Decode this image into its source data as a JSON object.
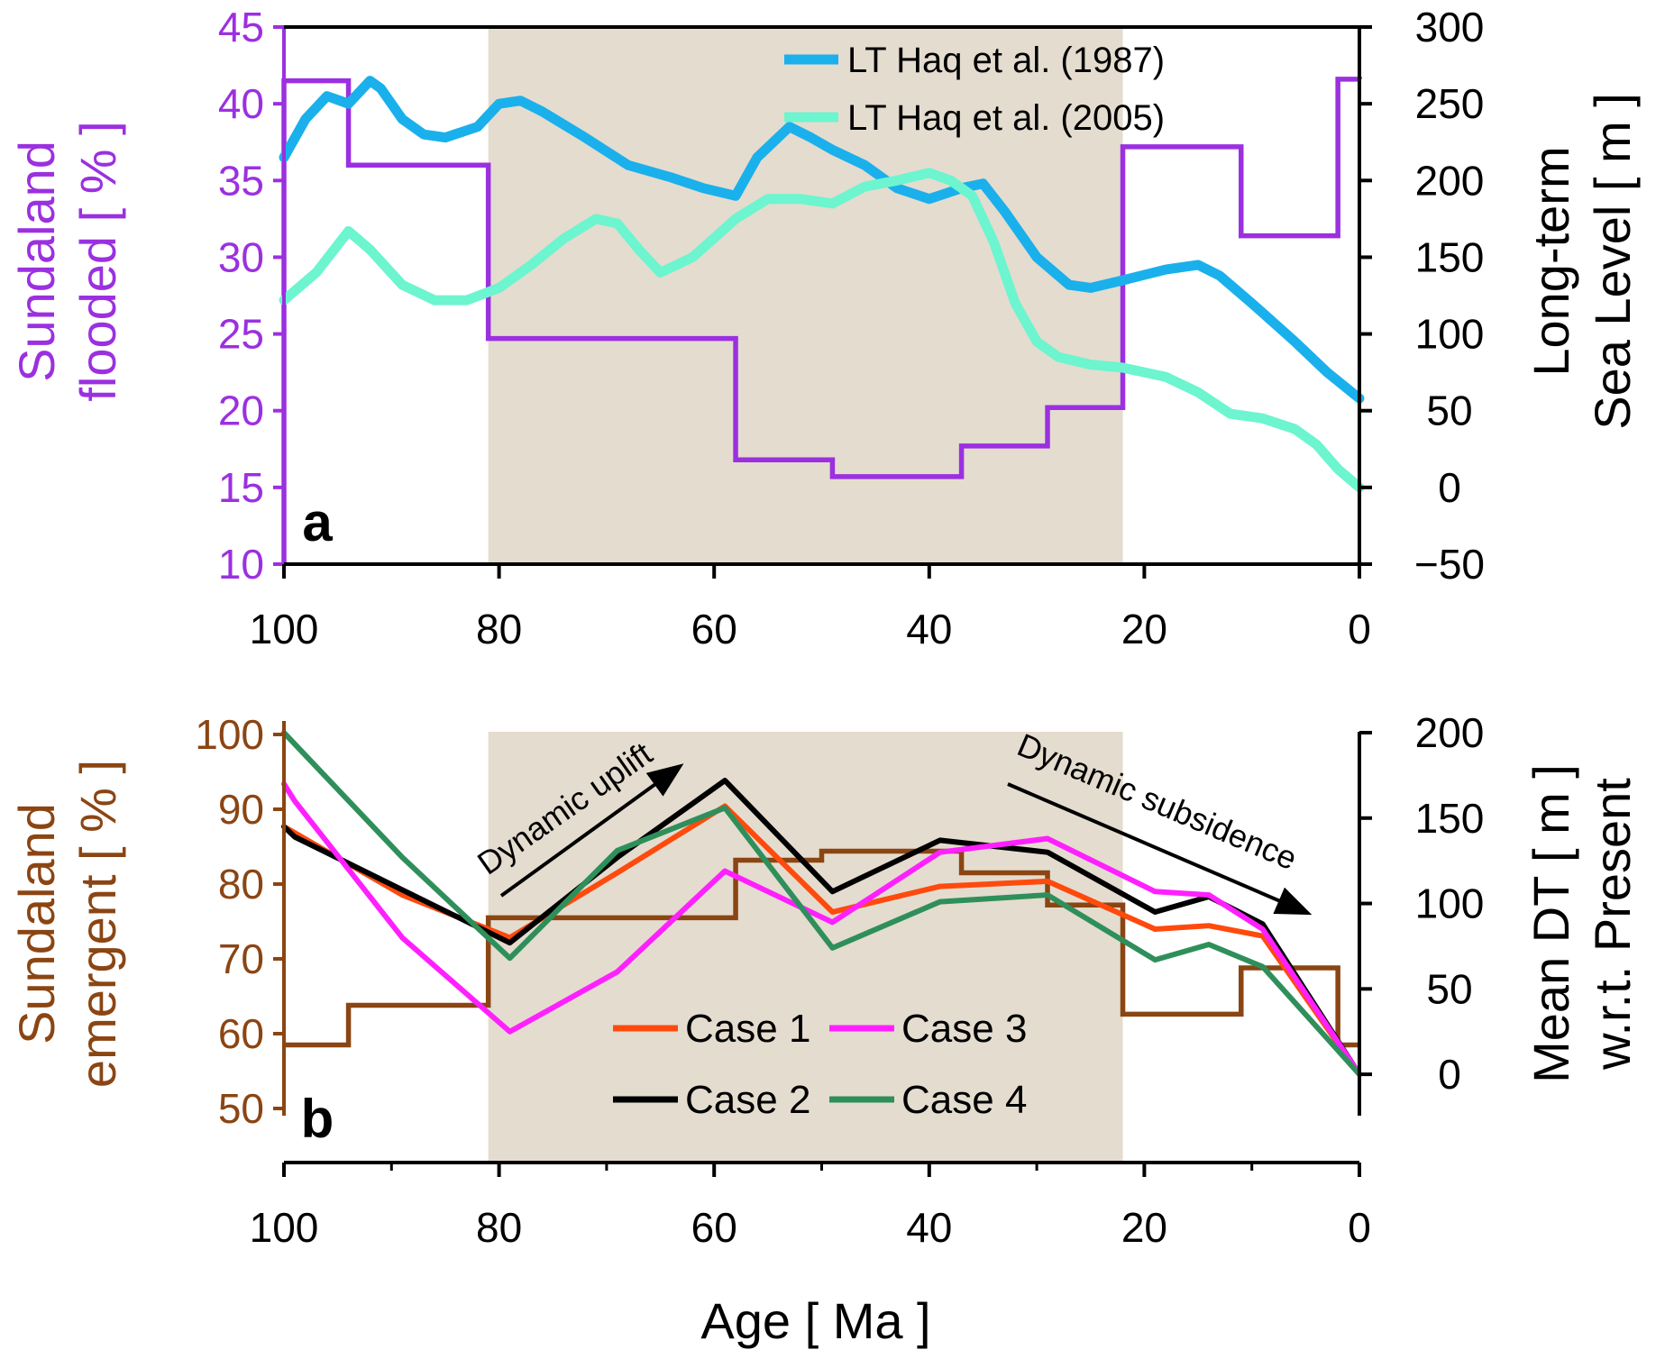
{
  "chart_data": [
    {
      "panel": "a",
      "type": "line",
      "xlabel": "",
      "x_ticks": [
        "100",
        "80",
        "60",
        "40",
        "20",
        "0"
      ],
      "xlim": [
        100,
        0
      ],
      "ylabel_left": [
        "Sundaland",
        "flooded [ % ]"
      ],
      "ylim_left": [
        10,
        45
      ],
      "y_ticks_left": [
        "10",
        "15",
        "20",
        "25",
        "30",
        "35",
        "40",
        "45"
      ],
      "ylabel_right": [
        "Long-term",
        "Sea Level [ m ]"
      ],
      "ylim_right": [
        -50,
        300
      ],
      "y_ticks_right": [
        "-50",
        "0",
        "50",
        "100",
        "150",
        "200",
        "250",
        "300"
      ],
      "shaded_interval_ma": [
        81,
        22
      ],
      "panel_letter": "a",
      "step_series": {
        "axis": "left",
        "color": "#9b30e0",
        "boundaries": [
          100,
          94,
          81,
          58,
          49,
          37,
          29,
          22,
          11,
          2,
          0
        ],
        "values": [
          41.5,
          36,
          24.7,
          16.8,
          15.7,
          17.7,
          20.2,
          37.2,
          31.4,
          41.6
        ]
      },
      "series": [
        {
          "name": "LT Haq et al. (1987)",
          "axis": "right",
          "color": "#1ab0ec",
          "x": [
            100,
            98,
            96,
            94,
            92,
            91,
            89,
            87,
            85,
            82,
            80,
            78,
            76,
            72,
            68,
            64,
            61,
            58,
            56,
            53,
            51,
            49,
            46,
            43,
            40,
            37,
            35,
            33,
            30,
            27,
            25,
            22,
            18,
            15,
            13,
            10,
            6,
            3,
            0
          ],
          "y": [
            215,
            240,
            255,
            250,
            265,
            260,
            240,
            230,
            228,
            235,
            250,
            252,
            245,
            228,
            210,
            202,
            195,
            190,
            215,
            235,
            228,
            220,
            210,
            195,
            188,
            195,
            198,
            180,
            150,
            132,
            130,
            135,
            142,
            145,
            138,
            120,
            95,
            75,
            58
          ]
        },
        {
          "name": "LT Haq et al. (2005)",
          "axis": "right",
          "color": "#6cf5cf",
          "x": [
            100,
            97,
            94,
            92,
            89,
            86,
            83,
            80,
            77,
            74,
            71,
            69,
            67,
            65,
            62,
            58,
            55,
            52,
            49,
            46,
            43,
            40,
            38,
            36,
            34,
            32,
            30,
            28,
            25,
            22,
            18,
            15,
            12,
            9,
            6,
            4,
            2,
            0
          ],
          "y": [
            122,
            140,
            167,
            155,
            132,
            122,
            122,
            130,
            145,
            162,
            175,
            172,
            155,
            140,
            150,
            175,
            188,
            188,
            185,
            196,
            200,
            205,
            200,
            190,
            160,
            120,
            95,
            85,
            80,
            78,
            72,
            62,
            48,
            45,
            38,
            28,
            12,
            0
          ]
        }
      ],
      "legend": [
        "LT Haq et al. (1987)",
        "LT Haq et al. (2005)"
      ]
    },
    {
      "panel": "b",
      "type": "line",
      "xlabel": "Age [ Ma ]",
      "x_ticks": [
        "100",
        "80",
        "60",
        "40",
        "20",
        "0"
      ],
      "xlim": [
        100,
        0
      ],
      "ylabel_left": [
        "Sundaland",
        "emergent [ % ]"
      ],
      "ylim_left": [
        50,
        100
      ],
      "y_ticks_left": [
        "50",
        "60",
        "70",
        "80",
        "90",
        "100"
      ],
      "ylabel_right": [
        "Mean DT [ m ]",
        "w.r.t. Present"
      ],
      "ylim_right": [
        -20,
        200
      ],
      "y_ticks_right": [
        "0",
        "50",
        "100",
        "150",
        "200"
      ],
      "shaded_interval_ma": [
        81,
        22
      ],
      "panel_letter": "b",
      "step_series": {
        "axis": "left",
        "color": "#8b4513",
        "boundaries": [
          100,
          94,
          81,
          58,
          50,
          39,
          37,
          29,
          22,
          11,
          2,
          0
        ],
        "values": [
          58.5,
          63.8,
          75.5,
          83.2,
          84.4,
          84.4,
          81.5,
          77.2,
          62.6,
          68.8,
          58.5
        ]
      },
      "series": [
        {
          "name": "Case 1",
          "axis": "right",
          "color": "#ff4a0d",
          "x": [
            100,
            89,
            79,
            69,
            59,
            49,
            39,
            29,
            19,
            14,
            9,
            0
          ],
          "y": [
            145,
            105,
            80,
            118,
            157,
            95,
            110,
            113,
            85,
            87,
            81,
            0
          ]
        },
        {
          "name": "Case 2",
          "axis": "right",
          "color": "#000000",
          "x": [
            100,
            99,
            89,
            79,
            69,
            59,
            49,
            39,
            29,
            19,
            14,
            9,
            0
          ],
          "y": [
            145,
            139,
            108,
            77,
            127,
            172,
            107,
            137,
            130,
            95,
            104,
            88,
            0
          ]
        },
        {
          "name": "Case 3",
          "axis": "right",
          "color": "#ff20ff",
          "x": [
            100,
            99,
            89,
            79,
            69,
            59,
            49,
            39,
            29,
            19,
            14,
            9,
            0
          ],
          "y": [
            170,
            160,
            80,
            25,
            60,
            119,
            89,
            130,
            138,
            107,
            105,
            85,
            0
          ]
        },
        {
          "name": "Case 4",
          "axis": "right",
          "color": "#2f8f5b",
          "x": [
            100,
            89,
            79,
            69,
            59,
            49,
            39,
            29,
            19,
            14,
            9,
            0
          ],
          "y": [
            200,
            127,
            68,
            131,
            156,
            74,
            101,
            105,
            67,
            76,
            63,
            0
          ]
        }
      ],
      "legend": [
        "Case 1",
        "Case 2",
        "Case 3",
        "Case 4"
      ],
      "annotations": [
        "Dynamic uplift",
        "Dynamic subsidence"
      ]
    }
  ]
}
